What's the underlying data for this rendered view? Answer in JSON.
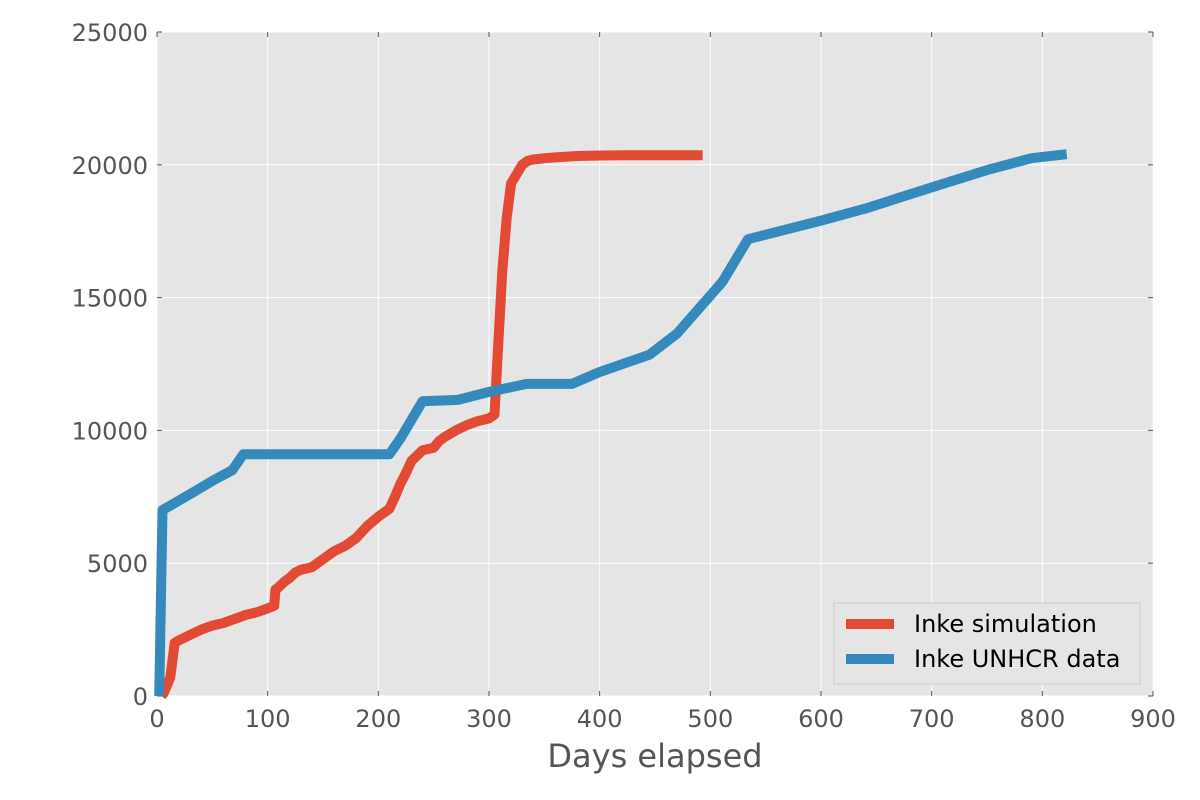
{
  "chart_data": {
    "type": "line",
    "title": "",
    "xlabel": "Days elapsed",
    "ylabel": "",
    "xlim": [
      0,
      900
    ],
    "ylim": [
      0,
      25000
    ],
    "x_ticks": [
      0,
      100,
      200,
      300,
      400,
      500,
      600,
      700,
      800,
      900
    ],
    "y_ticks": [
      0,
      5000,
      10000,
      15000,
      20000,
      25000
    ],
    "grid": true,
    "legend_position": "bottom-right",
    "background_color": "#e5e5e5",
    "series": [
      {
        "name": "Inke simulation",
        "color": "#e24a33",
        "x": [
          4,
          6,
          8,
          12,
          16,
          20,
          30,
          40,
          50,
          60,
          70,
          80,
          90,
          100,
          106,
          107,
          110,
          115,
          120,
          125,
          130,
          140,
          150,
          160,
          170,
          180,
          190,
          200,
          210,
          215,
          220,
          225,
          230,
          240,
          245,
          250,
          255,
          260,
          270,
          280,
          290,
          300,
          305,
          308,
          312,
          316,
          320,
          330,
          335,
          340,
          350,
          360,
          380,
          400,
          420,
          450,
          480,
          493
        ],
        "y": [
          0,
          100,
          300,
          700,
          2000,
          2100,
          2300,
          2500,
          2650,
          2750,
          2900,
          3050,
          3150,
          3300,
          3400,
          4000,
          4100,
          4300,
          4450,
          4650,
          4750,
          4850,
          5150,
          5450,
          5650,
          5950,
          6400,
          6750,
          7050,
          7500,
          8000,
          8400,
          8850,
          9250,
          9300,
          9350,
          9600,
          9750,
          10000,
          10200,
          10350,
          10450,
          10600,
          13000,
          16000,
          18000,
          19300,
          20000,
          20150,
          20200,
          20250,
          20280,
          20330,
          20350,
          20360,
          20360,
          20360,
          20360
        ]
      },
      {
        "name": "Inke UNHCR data",
        "color": "#348abd",
        "x": [
          2,
          5,
          30,
          50,
          68,
          78,
          100,
          150,
          200,
          210,
          220,
          230,
          240,
          272,
          300,
          334,
          375,
          400,
          445,
          470,
          511,
          534,
          600,
          640,
          700,
          750,
          790,
          822
        ],
        "y": [
          0,
          7000,
          7600,
          8100,
          8500,
          9100,
          9100,
          9100,
          9100,
          9100,
          9700,
          10400,
          11100,
          11150,
          11450,
          11750,
          11750,
          12200,
          12850,
          13650,
          15600,
          17200,
          17900,
          18350,
          19150,
          19800,
          20250,
          20400
        ]
      }
    ]
  }
}
